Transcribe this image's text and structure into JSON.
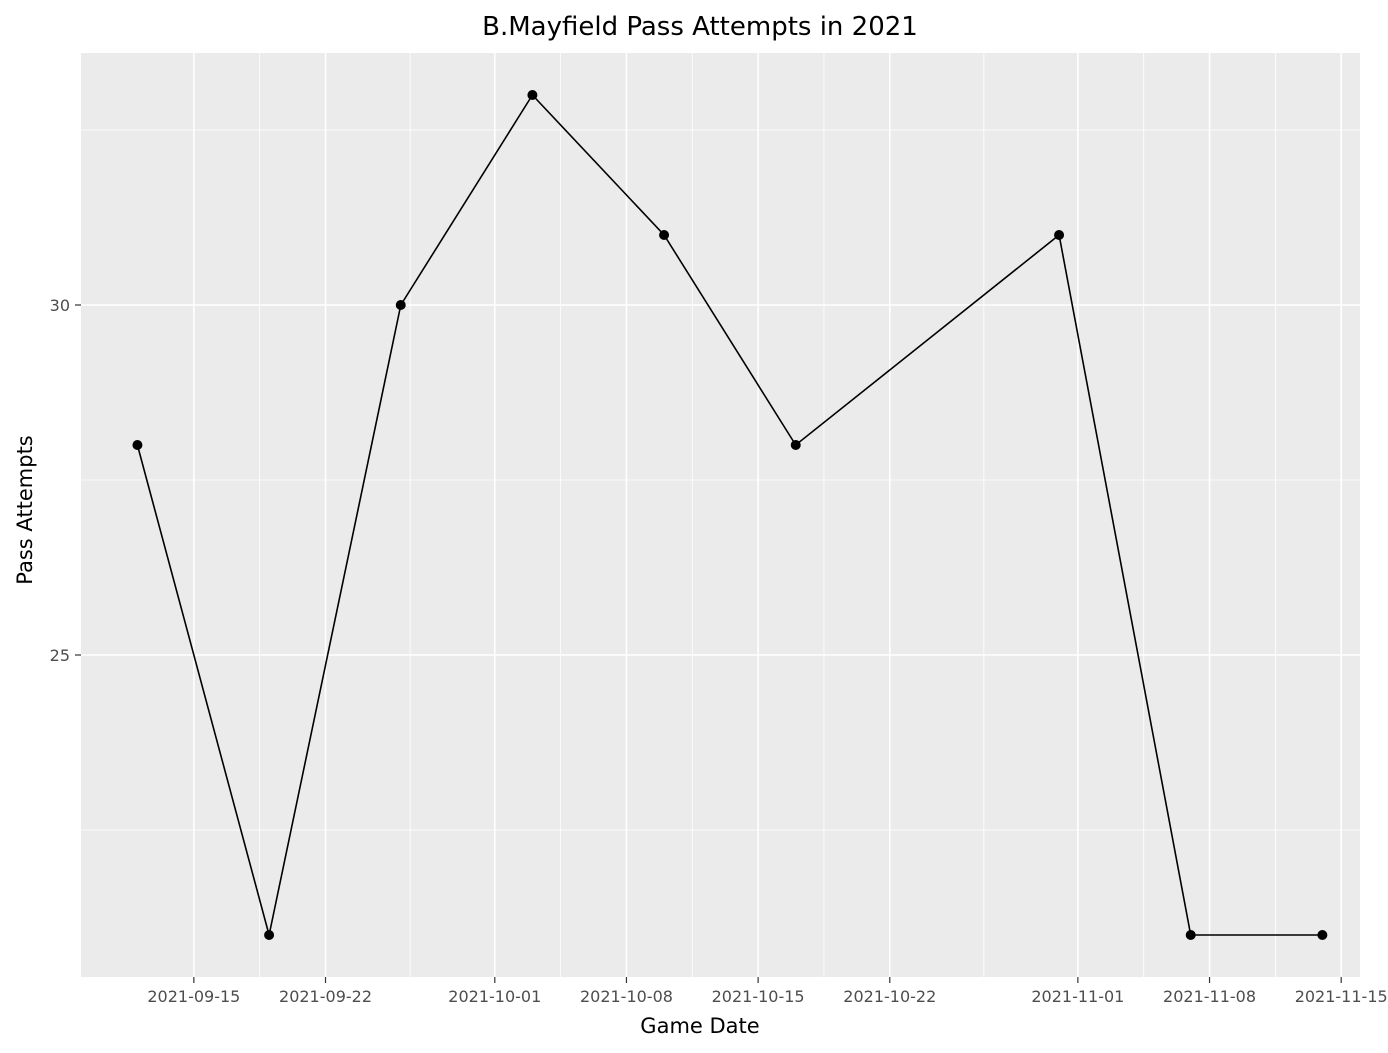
{
  "chart_data": {
    "type": "line",
    "title": "B.Mayfield Pass Attempts in 2021",
    "xlabel": "Game Date",
    "ylabel": "Pass Attempts",
    "x": [
      "2021-09-12",
      "2021-09-19",
      "2021-09-26",
      "2021-10-03",
      "2021-10-10",
      "2021-10-17",
      "2021-10-31",
      "2021-11-07",
      "2021-11-14"
    ],
    "series": [
      {
        "values": [
          28,
          21,
          30,
          33,
          31,
          28,
          31,
          21,
          21
        ]
      }
    ],
    "x_ticks": [
      "2021-09-15",
      "2021-09-22",
      "2021-10-01",
      "2021-10-08",
      "2021-10-15",
      "2021-10-22",
      "2021-11-01",
      "2021-11-08",
      "2021-11-15"
    ],
    "y_ticks": [
      25,
      30
    ],
    "xlim": [
      "2021-09-09",
      "2021-11-16"
    ],
    "ylim": [
      20.4,
      33.6
    ],
    "grid": true,
    "colors": {
      "panel": "#ebebeb",
      "grid": "#ffffff",
      "line": "#000000",
      "points": "#000000"
    }
  }
}
